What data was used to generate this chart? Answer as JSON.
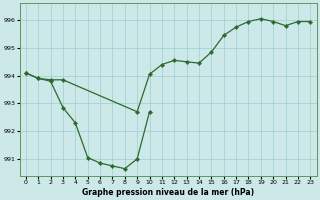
{
  "xlabel": "Graphe pression niveau de la mer (hPa)",
  "ylim": [
    990.4,
    996.6
  ],
  "yticks": [
    991,
    992,
    993,
    994,
    995,
    996
  ],
  "xticks": [
    0,
    1,
    2,
    3,
    4,
    5,
    6,
    7,
    8,
    9,
    10,
    11,
    12,
    13,
    14,
    15,
    16,
    17,
    18,
    19,
    20,
    21,
    22,
    23
  ],
  "line_color": "#2d6a2d",
  "bg_color": "#cce8e8",
  "grid_color": "#9fcfcf",
  "marker": "D",
  "marker_size": 2.2,
  "line_width": 0.9,
  "lineA_x": [
    0,
    1,
    2,
    3,
    9,
    10,
    11,
    12,
    13,
    14,
    15,
    16,
    17,
    18,
    19,
    20,
    21,
    22,
    23
  ],
  "lineA_y": [
    994.1,
    993.9,
    993.85,
    993.85,
    992.7,
    994.05,
    994.4,
    994.55,
    994.5,
    994.45,
    994.85,
    995.45,
    995.75,
    995.95,
    996.05,
    995.95,
    995.8,
    995.95,
    995.95
  ],
  "lineB_x": [
    0,
    1,
    2,
    3,
    4,
    5,
    6,
    7,
    8,
    9,
    10
  ],
  "lineB_y": [
    994.1,
    993.9,
    993.8,
    992.85,
    992.3,
    991.05,
    990.85,
    990.75,
    990.65,
    991.0,
    992.7
  ]
}
